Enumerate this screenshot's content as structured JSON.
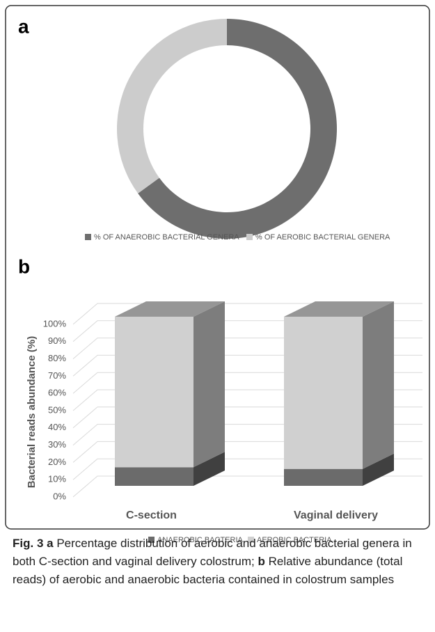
{
  "chart_data": [
    {
      "type": "donut",
      "panel": "a",
      "categories": [
        "% OF ANAEROBIC BACTERIAL GENERA",
        "% OF AEROBIC BACTERIAL GENERA"
      ],
      "values": [
        65,
        35
      ],
      "colors": [
        "#6e6e6e",
        "#cccccc"
      ],
      "legend": "bottom"
    },
    {
      "type": "stacked-bar-3d",
      "panel": "b",
      "ylabel": "Bacterial reads abundance (%)",
      "categories": [
        "C-section",
        "Vaginal delivery"
      ],
      "series": [
        {
          "name": "ANAEROBIC BACTERIA",
          "color": "#6b6b6b",
          "values": [
            11,
            10
          ]
        },
        {
          "name": "AEROBIC BACTERIA",
          "color": "#d0d0d0",
          "values": [
            89,
            90
          ]
        }
      ],
      "ylim": [
        0,
        100
      ],
      "yticks": [
        {
          "value": 0,
          "label": "0%"
        },
        {
          "value": 10,
          "label": "10%"
        },
        {
          "value": 20,
          "label": "20%"
        },
        {
          "value": 30,
          "label": "30%"
        },
        {
          "value": 40,
          "label": "40%"
        },
        {
          "value": 50,
          "label": "50%"
        },
        {
          "value": 60,
          "label": "60%"
        },
        {
          "value": 70,
          "label": "70%"
        },
        {
          "value": 80,
          "label": "80%"
        },
        {
          "value": 90,
          "label": "90%"
        },
        {
          "value": 100,
          "label": "100%"
        }
      ],
      "grid": true,
      "legend": "bottom"
    }
  ],
  "caption": {
    "figure": "Fig. 3",
    "a_label": "a",
    "a_text": "Percentage distribution of aerobic and anaerobic bacterial genera in both C-section and vaginal delivery colostrum;",
    "b_label": "b",
    "b_text": "Relative abundance (total reads) of aerobic and anaerobic bacteria contained in colostrum samples"
  }
}
